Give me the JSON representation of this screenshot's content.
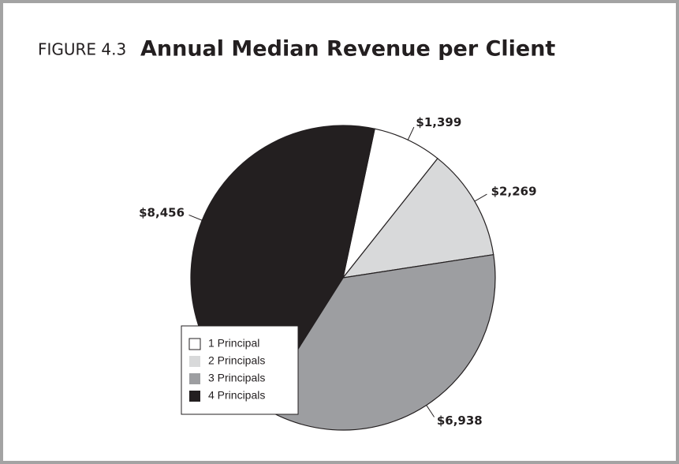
{
  "chart_data": {
    "type": "pie",
    "figure_number": "FIGURE 4.3",
    "title": "Annual Median Revenue per Client",
    "categories": [
      "1 Principal",
      "2 Principals",
      "3 Principals",
      "4 Principals"
    ],
    "values": [
      1399,
      2269,
      6938,
      8456
    ],
    "value_labels": [
      "$1,399",
      "$2,269",
      "$6,938",
      "$8,456"
    ],
    "colors": [
      "#ffffff",
      "#d8d9da",
      "#9d9ea1",
      "#231f20"
    ],
    "legend": "lower left"
  }
}
